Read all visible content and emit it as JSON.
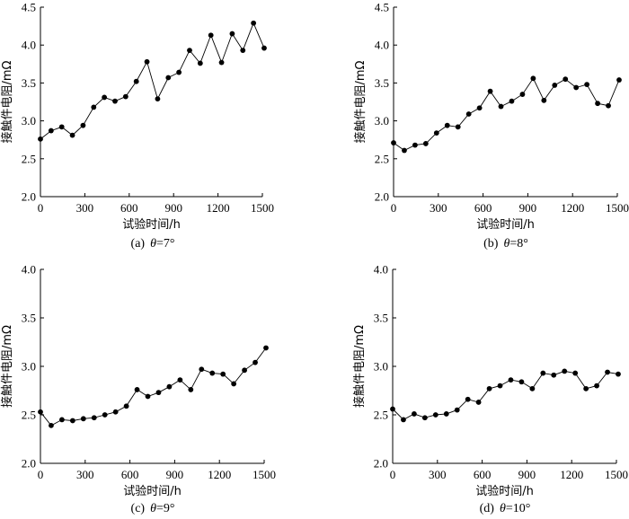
{
  "chart_data": [
    {
      "type": "line",
      "caption": {
        "prefix": "(a)",
        "symbol": "θ",
        "rest": "=7°"
      },
      "xlabel": "试验时间/h",
      "ylabel": "接触件电阻/mΩ",
      "xlim": [
        0,
        1500
      ],
      "ylim": [
        2.0,
        4.5
      ],
      "xticks": [
        0,
        300,
        600,
        900,
        1200,
        1500
      ],
      "yticks": [
        "2.0",
        "2.5",
        "3.0",
        "3.5",
        "4.0",
        "4.5"
      ],
      "grid": false,
      "series": [
        {
          "x": [
            0,
            72,
            144,
            216,
            288,
            360,
            432,
            504,
            576,
            648,
            720,
            792,
            864,
            936,
            1008,
            1080,
            1152,
            1224,
            1296,
            1368,
            1440,
            1512
          ],
          "y": [
            2.76,
            2.87,
            2.92,
            2.81,
            2.94,
            3.18,
            3.31,
            3.26,
            3.32,
            3.52,
            3.78,
            3.29,
            3.57,
            3.64,
            3.93,
            3.76,
            4.13,
            3.77,
            4.15,
            3.93,
            4.29,
            3.96
          ]
        }
      ]
    },
    {
      "type": "line",
      "caption": {
        "prefix": "(b)",
        "symbol": "θ",
        "rest": "=8°"
      },
      "xlabel": "试验时间/h",
      "ylabel": "接触件电阻/mΩ",
      "xlim": [
        0,
        1500
      ],
      "ylim": [
        2.0,
        4.5
      ],
      "xticks": [
        0,
        300,
        600,
        900,
        1200,
        1500
      ],
      "yticks": [
        "2.0",
        "2.5",
        "3.0",
        "3.5",
        "4.0",
        "4.5"
      ],
      "grid": false,
      "series": [
        {
          "x": [
            0,
            72,
            144,
            216,
            288,
            360,
            432,
            504,
            576,
            648,
            720,
            792,
            864,
            936,
            1008,
            1080,
            1152,
            1224,
            1296,
            1368,
            1440,
            1512
          ],
          "y": [
            2.71,
            2.61,
            2.68,
            2.7,
            2.84,
            2.94,
            2.92,
            3.09,
            3.17,
            3.39,
            3.19,
            3.26,
            3.35,
            3.56,
            3.27,
            3.47,
            3.55,
            3.44,
            3.48,
            3.23,
            3.2,
            3.54
          ]
        }
      ]
    },
    {
      "type": "line",
      "caption": {
        "prefix": "(c)",
        "symbol": "θ",
        "rest": "=9°"
      },
      "xlabel": "试验时间/h",
      "ylabel": "接触件电阻/mΩ",
      "xlim": [
        0,
        1500
      ],
      "ylim": [
        2.0,
        4.0
      ],
      "xticks": [
        0,
        300,
        600,
        900,
        1200,
        1500
      ],
      "yticks": [
        "2.0",
        "2.5",
        "3.0",
        "3.5",
        "4.0"
      ],
      "grid": false,
      "series": [
        {
          "x": [
            0,
            72,
            144,
            216,
            288,
            360,
            432,
            504,
            576,
            648,
            720,
            792,
            864,
            936,
            1008,
            1080,
            1152,
            1224,
            1296,
            1368,
            1440,
            1512
          ],
          "y": [
            2.53,
            2.39,
            2.45,
            2.44,
            2.46,
            2.47,
            2.5,
            2.53,
            2.59,
            2.76,
            2.69,
            2.73,
            2.79,
            2.86,
            2.76,
            2.97,
            2.93,
            2.92,
            2.82,
            2.96,
            3.04,
            3.19
          ]
        }
      ]
    },
    {
      "type": "line",
      "caption": {
        "prefix": "(d)",
        "symbol": "θ",
        "rest": "=10°"
      },
      "xlabel": "试验时间/h",
      "ylabel": "接触件电阻/mΩ",
      "xlim": [
        0,
        1500
      ],
      "ylim": [
        2.0,
        4.0
      ],
      "xticks": [
        0,
        300,
        600,
        900,
        1200,
        1500
      ],
      "yticks": [
        "2.0",
        "2.5",
        "3.0",
        "3.5",
        "4.0"
      ],
      "grid": false,
      "series": [
        {
          "x": [
            0,
            72,
            144,
            216,
            288,
            360,
            432,
            504,
            576,
            648,
            720,
            792,
            864,
            936,
            1008,
            1080,
            1152,
            1224,
            1296,
            1368,
            1440,
            1512
          ],
          "y": [
            2.56,
            2.45,
            2.51,
            2.47,
            2.5,
            2.51,
            2.55,
            2.66,
            2.63,
            2.77,
            2.8,
            2.86,
            2.84,
            2.77,
            2.93,
            2.91,
            2.95,
            2.93,
            2.77,
            2.8,
            2.94,
            2.92
          ]
        }
      ]
    }
  ]
}
